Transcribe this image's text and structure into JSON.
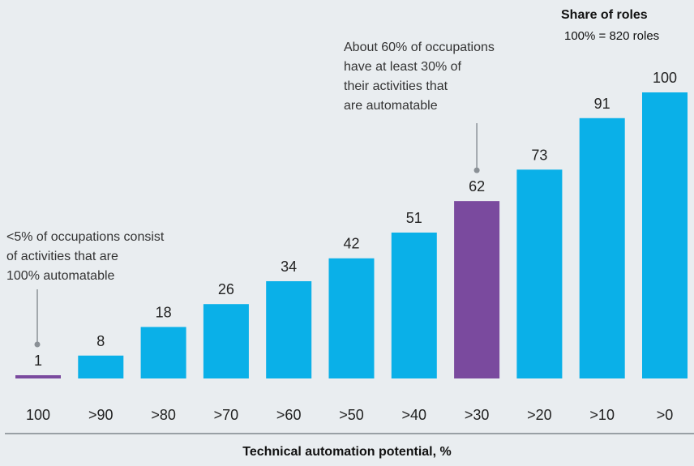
{
  "chart_data": {
    "type": "bar",
    "title": "",
    "xlabel": "Technical automation potential, %",
    "ylabel": "",
    "legend": {
      "title": "Share of roles",
      "subtitle": "100% = 820 roles",
      "placement": "top-right"
    },
    "categories": [
      "100",
      ">90",
      ">80",
      ">70",
      ">60",
      ">50",
      ">40",
      ">30",
      ">20",
      ">10",
      ">0"
    ],
    "values": [
      1,
      8,
      18,
      26,
      34,
      42,
      51,
      62,
      73,
      91,
      100
    ],
    "highlighted": [
      0,
      7
    ],
    "colors": {
      "default": "#0ab0e8",
      "highlight": "#7a4a9e",
      "callout": "#8a9096",
      "axis": "#7f868c"
    },
    "ylim": [
      0,
      100
    ],
    "grid": false,
    "annotations": [
      {
        "target_index": 7,
        "lines": [
          "About 60% of occupations",
          "have at least 30% of",
          "their activities that",
          "are automatable"
        ]
      },
      {
        "target_index": 0,
        "lines": [
          "<5% of occupations consist",
          "of activities that are",
          "100% automatable"
        ]
      }
    ]
  }
}
